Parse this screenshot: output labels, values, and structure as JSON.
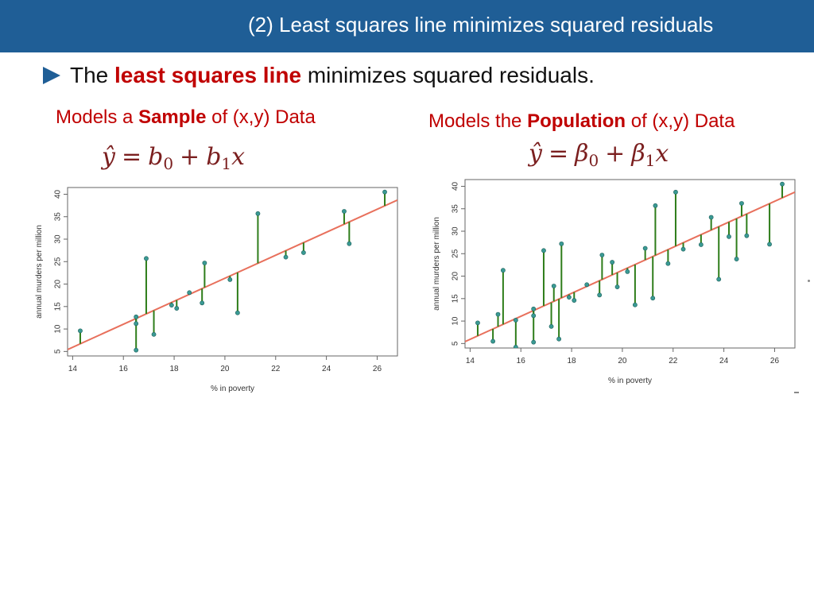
{
  "header": {
    "title": "(2) Least squares line minimizes squared residuals"
  },
  "bullet": {
    "prefix": "The",
    "emphasis": "least squares line",
    "suffix": "minimizes squared residuals."
  },
  "sample_caption": {
    "pre": "Models a",
    "bold": "Sample",
    "post": "of (x,y) Data"
  },
  "population_caption": {
    "pre": "Models the",
    "bold": "Population",
    "post": "of (x,y) Data"
  },
  "sample_equation": {
    "lhs": "ŷ",
    "eq": "=",
    "b": "b",
    "s0": "0",
    "plus": "+",
    "s1": "1",
    "x": "x"
  },
  "population_equation": {
    "lhs": "ŷ",
    "eq": "=",
    "b": "β",
    "s0": "0",
    "plus": "+",
    "s1": "1",
    "x": "x"
  },
  "colors": {
    "header_bg": "#1f5e96",
    "accent_red": "#c00000",
    "fit_line": "#e8705c",
    "residual": "#2e7d1a",
    "point": "#3a9a94"
  },
  "chart_data": [
    {
      "type": "scatter",
      "title": "",
      "xlabel": "% in poverty",
      "ylabel": "annual murders per million",
      "xlim": [
        13.8,
        26.8
      ],
      "ylim": [
        4.0,
        41.5
      ],
      "xticks": [
        "14",
        "16",
        "18",
        "20",
        "22",
        "24",
        "26"
      ],
      "yticks": [
        "5",
        "10",
        "15",
        "20",
        "25",
        "30",
        "35",
        "40"
      ],
      "fit_line": {
        "intercept": -29.9,
        "slope": 2.56
      },
      "points": [
        {
          "x": 14.3,
          "y": 9.6
        },
        {
          "x": 16.5,
          "y": 12.7
        },
        {
          "x": 16.5,
          "y": 11.2
        },
        {
          "x": 16.5,
          "y": 5.3
        },
        {
          "x": 16.9,
          "y": 25.7
        },
        {
          "x": 17.2,
          "y": 8.8
        },
        {
          "x": 17.9,
          "y": 15.3
        },
        {
          "x": 18.1,
          "y": 14.6
        },
        {
          "x": 18.6,
          "y": 18.1
        },
        {
          "x": 19.1,
          "y": 15.8
        },
        {
          "x": 19.2,
          "y": 24.7
        },
        {
          "x": 20.2,
          "y": 21.0
        },
        {
          "x": 20.5,
          "y": 13.6
        },
        {
          "x": 21.3,
          "y": 35.7
        },
        {
          "x": 22.4,
          "y": 26.0
        },
        {
          "x": 23.1,
          "y": 27.0
        },
        {
          "x": 24.7,
          "y": 36.2
        },
        {
          "x": 24.9,
          "y": 29.0
        },
        {
          "x": 26.3,
          "y": 40.5
        }
      ]
    },
    {
      "type": "scatter",
      "title": "",
      "xlabel": "% in poverty",
      "ylabel": "annual murders per million",
      "xlim": [
        13.8,
        26.8
      ],
      "ylim": [
        4.0,
        41.5
      ],
      "xticks": [
        "14",
        "16",
        "18",
        "20",
        "22",
        "24",
        "26"
      ],
      "yticks": [
        "5",
        "10",
        "15",
        "20",
        "25",
        "30",
        "35",
        "40"
      ],
      "fit_line": {
        "intercept": -29.9,
        "slope": 2.56
      },
      "points": [
        {
          "x": 14.3,
          "y": 9.6
        },
        {
          "x": 14.9,
          "y": 5.5
        },
        {
          "x": 15.1,
          "y": 11.5
        },
        {
          "x": 15.3,
          "y": 21.3
        },
        {
          "x": 15.8,
          "y": 10.2
        },
        {
          "x": 15.8,
          "y": 4.2
        },
        {
          "x": 16.5,
          "y": 12.7
        },
        {
          "x": 16.5,
          "y": 11.2
        },
        {
          "x": 16.5,
          "y": 5.3
        },
        {
          "x": 16.9,
          "y": 25.7
        },
        {
          "x": 17.2,
          "y": 8.8
        },
        {
          "x": 17.3,
          "y": 17.8
        },
        {
          "x": 17.5,
          "y": 6.0
        },
        {
          "x": 17.6,
          "y": 27.2
        },
        {
          "x": 17.9,
          "y": 15.3
        },
        {
          "x": 18.1,
          "y": 14.6
        },
        {
          "x": 18.6,
          "y": 18.1
        },
        {
          "x": 19.1,
          "y": 15.8
        },
        {
          "x": 19.2,
          "y": 24.7
        },
        {
          "x": 19.6,
          "y": 23.1
        },
        {
          "x": 19.8,
          "y": 17.6
        },
        {
          "x": 20.2,
          "y": 21.0
        },
        {
          "x": 20.5,
          "y": 13.6
        },
        {
          "x": 20.9,
          "y": 26.2
        },
        {
          "x": 21.2,
          "y": 15.1
        },
        {
          "x": 21.3,
          "y": 35.7
        },
        {
          "x": 21.8,
          "y": 22.8
        },
        {
          "x": 22.1,
          "y": 38.7
        },
        {
          "x": 22.4,
          "y": 26.0
        },
        {
          "x": 23.1,
          "y": 27.0
        },
        {
          "x": 23.5,
          "y": 33.1
        },
        {
          "x": 23.8,
          "y": 19.3
        },
        {
          "x": 24.2,
          "y": 28.8
        },
        {
          "x": 24.5,
          "y": 23.8
        },
        {
          "x": 24.7,
          "y": 36.2
        },
        {
          "x": 24.9,
          "y": 29.0
        },
        {
          "x": 25.8,
          "y": 27.1
        },
        {
          "x": 26.3,
          "y": 40.5
        }
      ]
    }
  ]
}
